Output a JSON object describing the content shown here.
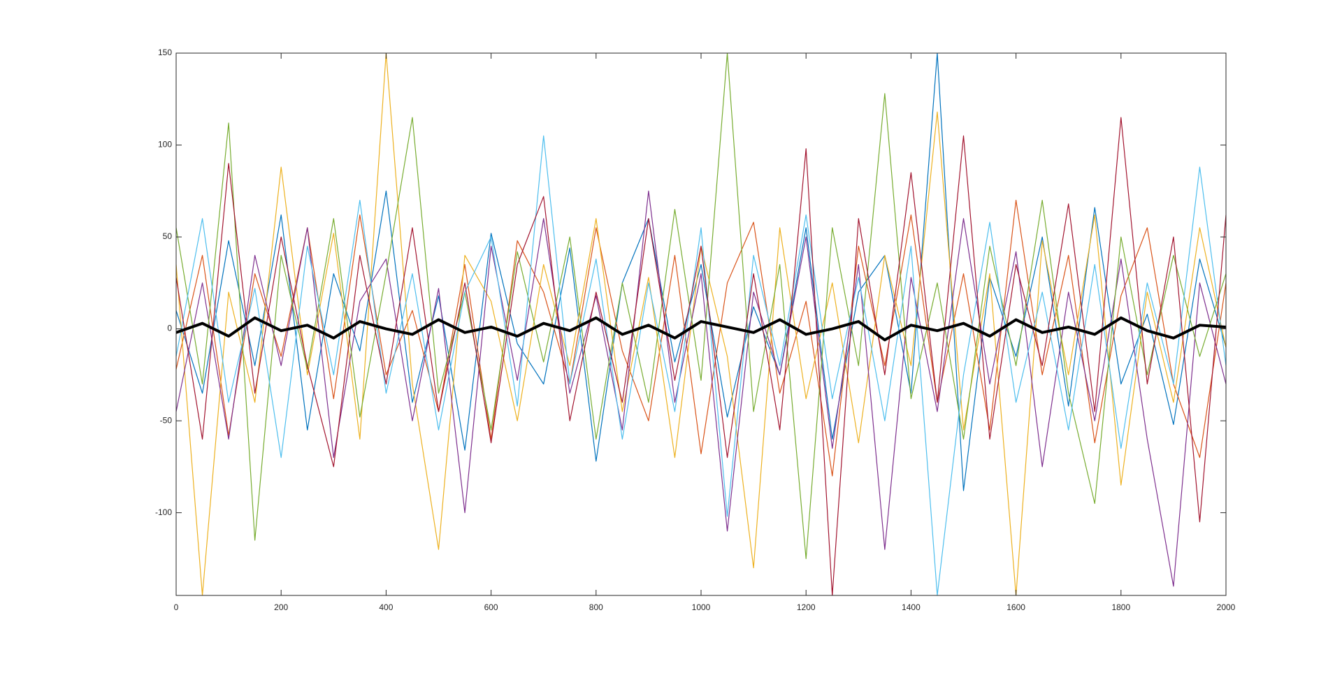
{
  "chart_data": {
    "type": "line",
    "x": [
      0,
      50,
      100,
      150,
      200,
      250,
      300,
      350,
      400,
      450,
      500,
      550,
      600,
      650,
      700,
      750,
      800,
      850,
      900,
      950,
      1000,
      1050,
      1100,
      1150,
      1200,
      1250,
      1300,
      1350,
      1400,
      1450,
      1500,
      1550,
      1600,
      1650,
      1700,
      1750,
      1800,
      1850,
      1900,
      1950,
      2000
    ],
    "series": [
      {
        "color": "#0072BD",
        "values": [
          10,
          -35,
          48,
          -20,
          62,
          -55,
          30,
          -12,
          75,
          -40,
          18,
          -66,
          52,
          -8,
          -30,
          44,
          -72,
          25,
          60,
          -18,
          35,
          -48,
          12,
          -25,
          55,
          -60,
          20,
          40,
          -35,
          150,
          -88,
          28,
          -15,
          50,
          -42,
          66,
          -30,
          8,
          -52,
          38,
          -10
        ]
      },
      {
        "color": "#D95319",
        "values": [
          -22,
          40,
          -58,
          30,
          -15,
          55,
          -38,
          62,
          -25,
          10,
          -45,
          35,
          -60,
          48,
          20,
          -30,
          55,
          -12,
          -50,
          40,
          -68,
          25,
          58,
          -35,
          15,
          -80,
          45,
          -20,
          62,
          -40,
          30,
          -55,
          70,
          -25,
          40,
          -62,
          18,
          55,
          -30,
          -70,
          25
        ]
      },
      {
        "color": "#EDB120",
        "values": [
          35,
          -145,
          20,
          -40,
          88,
          -25,
          52,
          -60,
          150,
          -30,
          -120,
          40,
          15,
          -50,
          35,
          -20,
          60,
          -45,
          28,
          -70,
          45,
          -15,
          -130,
          55,
          -38,
          25,
          -62,
          40,
          -20,
          118,
          -55,
          30,
          -145,
          48,
          -25,
          62,
          -85,
          20,
          -40,
          55,
          -10
        ]
      },
      {
        "color": "#7E2F8E",
        "values": [
          -45,
          25,
          -60,
          40,
          -20,
          55,
          -70,
          15,
          38,
          -50,
          22,
          -100,
          45,
          -28,
          60,
          -35,
          18,
          -55,
          75,
          -40,
          30,
          -110,
          20,
          -25,
          50,
          -65,
          35,
          -120,
          28,
          -45,
          60,
          -30,
          42,
          -75,
          20,
          -50,
          38,
          -60,
          -140,
          25,
          -30
        ]
      },
      {
        "color": "#77AC30",
        "values": [
          55,
          -30,
          112,
          -115,
          40,
          -22,
          60,
          -48,
          30,
          115,
          -35,
          20,
          -55,
          42,
          -18,
          50,
          -60,
          25,
          -40,
          65,
          -28,
          150,
          -45,
          35,
          -125,
          55,
          -20,
          128,
          -38,
          25,
          -60,
          45,
          -20,
          70,
          -35,
          -95,
          50,
          -25,
          40,
          -15,
          30
        ]
      },
      {
        "color": "#4DBEEE",
        "values": [
          -15,
          60,
          -40,
          22,
          -70,
          45,
          -25,
          70,
          -35,
          30,
          -55,
          20,
          50,
          -42,
          105,
          -30,
          38,
          -60,
          25,
          -45,
          55,
          -102,
          40,
          -20,
          62,
          -38,
          28,
          -50,
          45,
          -145,
          -25,
          58,
          -40,
          20,
          -55,
          35,
          -65,
          25,
          -30,
          88,
          -20
        ]
      },
      {
        "color": "#A2142F",
        "values": [
          28,
          -60,
          90,
          -35,
          50,
          -20,
          -75,
          40,
          -30,
          55,
          -45,
          25,
          -62,
          35,
          72,
          -50,
          20,
          -40,
          60,
          -28,
          45,
          -70,
          30,
          -55,
          98,
          -145,
          60,
          -25,
          85,
          -40,
          105,
          -60,
          35,
          -20,
          68,
          -45,
          115,
          -30,
          50,
          -105,
          62
        ]
      },
      {
        "color": "#000000",
        "values": [
          -2,
          3,
          -4,
          6,
          -1,
          2,
          -5,
          4,
          0,
          -3,
          5,
          -2,
          1,
          -4,
          3,
          -1,
          6,
          -3,
          2,
          -5,
          4,
          1,
          -2,
          5,
          -3,
          0,
          4,
          -6,
          2,
          -1,
          3,
          -4,
          5,
          -2,
          1,
          -3,
          6,
          -1,
          -5,
          2,
          1
        ]
      }
    ],
    "xlim": [
      0,
      2000
    ],
    "xticks": [
      0,
      200,
      400,
      600,
      800,
      1000,
      1200,
      1400,
      1600,
      1800,
      2000
    ],
    "ylim": [
      -145,
      150
    ],
    "yticks": [
      -100,
      -50,
      0,
      50,
      100,
      150
    ]
  }
}
